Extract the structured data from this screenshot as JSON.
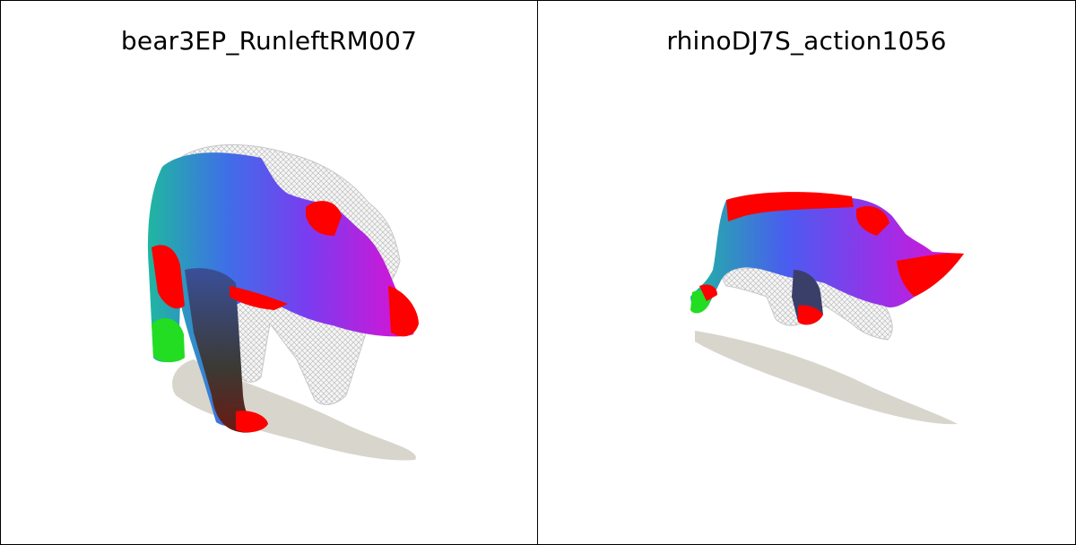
{
  "panels": [
    {
      "title": "bear3EP_RunleftRM007"
    },
    {
      "title": "rhinoDJ7S_action1056"
    }
  ],
  "colors": {
    "background": "#ffffff",
    "border": "#000000",
    "shadow": "#d8d5cc",
    "wireframe": "#c8c8c8",
    "mapping_red": "#ff0000",
    "mapping_green": "#22dd22",
    "mapping_teal": "#1fb7a0",
    "mapping_blue": "#4a5cf0",
    "mapping_magenta": "#e010d0"
  }
}
